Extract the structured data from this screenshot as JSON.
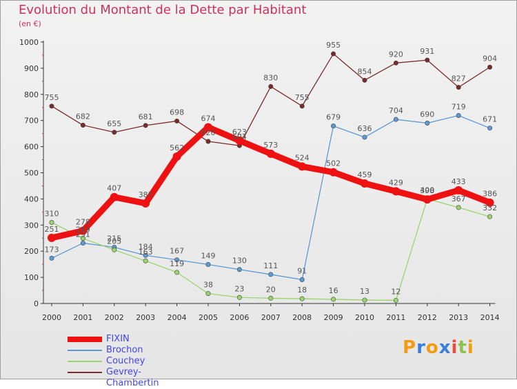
{
  "chart_data": {
    "type": "line",
    "title": "Evolution du Montant de la Dette par Habitant",
    "subtitle": "(en €)",
    "x": [
      "2000",
      "2001",
      "2002",
      "2003",
      "2004",
      "2005",
      "2006",
      "2007",
      "2008",
      "2009",
      "2010",
      "2011",
      "2012",
      "2013",
      "2014"
    ],
    "ylim": [
      0,
      1000
    ],
    "yticks": [
      0,
      100,
      200,
      300,
      400,
      500,
      600,
      700,
      800,
      900,
      1000
    ],
    "grid": false,
    "legend_placement": "bottom-left",
    "series": [
      {
        "name": "Gevrey-Chambertin",
        "color": "#7a2a2a",
        "values": [
          755,
          682,
          655,
          681,
          698,
          620,
          604,
          830,
          755,
          955,
          854,
          920,
          931,
          827,
          904
        ]
      },
      {
        "name": "Brochon",
        "color": "#5b9ad5",
        "values": [
          173,
          231,
          215,
          184,
          167,
          149,
          130,
          111,
          91,
          679,
          636,
          704,
          690,
          719,
          671
        ]
      },
      {
        "name": "Couchey",
        "color": "#9ad56b",
        "values": [
          310,
          249,
          205,
          163,
          119,
          38,
          23,
          20,
          18,
          16,
          13,
          12,
          400,
          367,
          332
        ]
      },
      {
        "name": "FIXIN",
        "color": "#ee1111",
        "values": [
          251,
          278,
          407,
          383,
          562,
          674,
          623,
          573,
          524,
          502,
          459,
          429,
          398,
          433,
          386
        ]
      }
    ]
  },
  "legend": [
    {
      "name": "FIXIN",
      "color": "#ee1111"
    },
    {
      "name": "Brochon",
      "color": "#5b9ad5"
    },
    {
      "name": "Couchey",
      "color": "#9ad56b"
    },
    {
      "name": "Gevrey-Chambertin",
      "color": "#7a2a2a"
    }
  ],
  "logo": {
    "letters": [
      "P",
      "r",
      "o",
      "x",
      "i",
      "t",
      "i"
    ],
    "colors": [
      "#f39c12",
      "#3b7dd8",
      "#f39c12",
      "#3b7dd8",
      "#e74c3c",
      "#8bc34a",
      "#f39c12"
    ]
  }
}
